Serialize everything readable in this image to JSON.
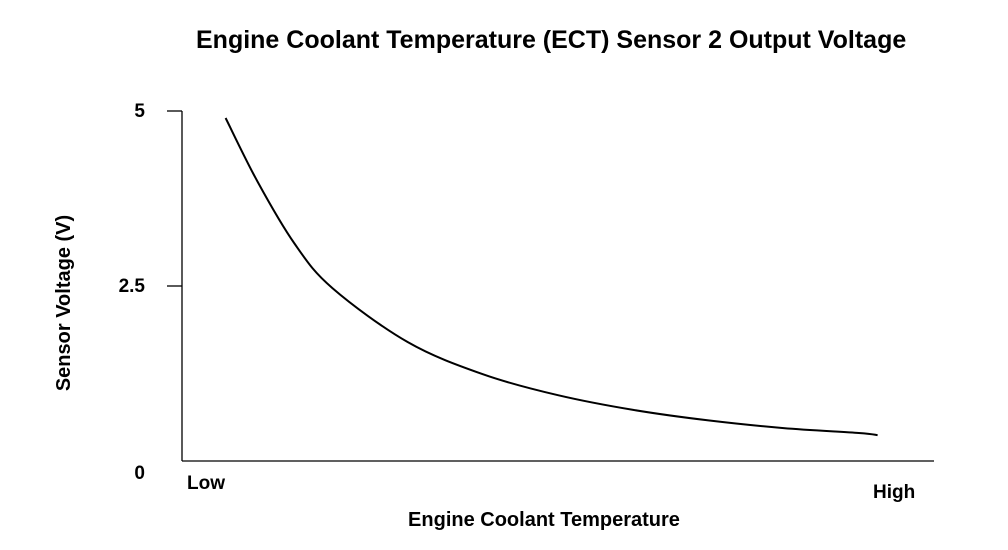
{
  "chart_data": {
    "type": "line",
    "title": "Engine Coolant Temperature (ECT) Sensor 2 Output Voltage",
    "xlabel": "Engine Coolant Temperature",
    "ylabel": "Sensor Voltage (V)",
    "x_tick_labels": [
      "Low",
      "High"
    ],
    "y_ticks": [
      {
        "value": 5,
        "label": "5"
      },
      {
        "value": 2.5,
        "label": "2.5"
      },
      {
        "value": 0,
        "label": "0"
      }
    ],
    "xlim": [
      0,
      1
    ],
    "ylim": [
      0,
      5
    ],
    "grid": false,
    "series": [
      {
        "x": [
          0.058,
          0.1,
          0.15,
          0.2,
          0.3,
          0.4,
          0.5,
          0.6,
          0.7,
          0.8,
          0.9,
          0.925
        ],
        "y": [
          4.9,
          4.0,
          3.1,
          2.47,
          1.7,
          1.24,
          0.94,
          0.73,
          0.58,
          0.47,
          0.4,
          0.37
        ]
      }
    ]
  }
}
